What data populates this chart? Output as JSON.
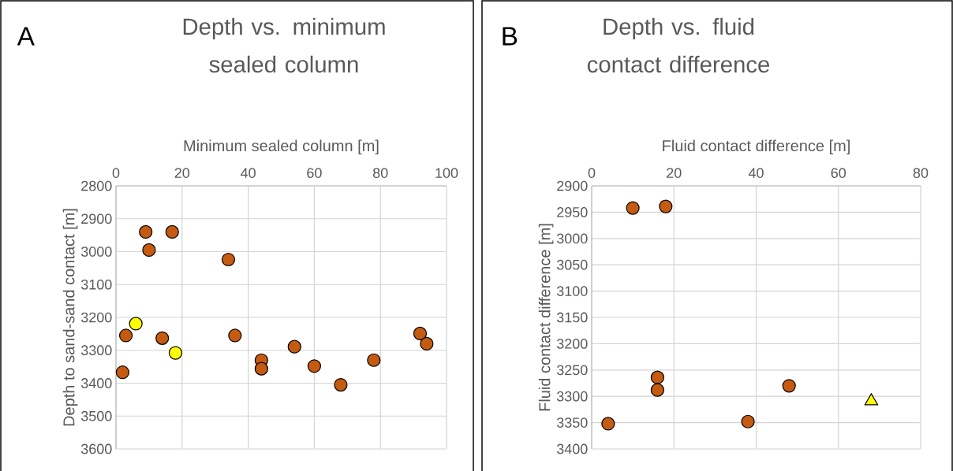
{
  "chart_data": [
    {
      "type": "scatter",
      "title": "Depth vs. minimum sealed column",
      "xlabel": "Minimum sealed column [m]",
      "ylabel": "Depth to sand-sand contact [m]",
      "annotations": [
        "A"
      ],
      "xlim": [
        0,
        100
      ],
      "xticks": [
        0,
        20,
        40,
        60,
        80,
        100
      ],
      "ylim": [
        3600,
        2800
      ],
      "yticks": [
        2800,
        2900,
        3000,
        3100,
        3200,
        3300,
        3400,
        3500,
        3600
      ],
      "grid": true,
      "series": [
        {
          "color": "#c55a11",
          "marker": "circle",
          "x": [
            9,
            17,
            10,
            34,
            36,
            3,
            14,
            2,
            44,
            44,
            54,
            60,
            68,
            78,
            92,
            94
          ],
          "values": [
            2940,
            2940,
            2995,
            3024,
            3255,
            3255,
            3263,
            3367,
            3330,
            3356,
            3289,
            3348,
            3405,
            3330,
            3249,
            3280
          ]
        },
        {
          "color": "#ffff00",
          "marker": "circle",
          "x": [
            6,
            18
          ],
          "values": [
            3219,
            3308
          ]
        }
      ]
    },
    {
      "type": "scatter",
      "title": "Depth vs. fluid contact difference",
      "xlabel": "Fluid contact difference [m]",
      "ylabel": "Fluid contact difference [m]",
      "annotations": [
        "B"
      ],
      "xlim": [
        0,
        80
      ],
      "xticks": [
        0,
        20,
        40,
        60,
        80
      ],
      "ylim": [
        3400,
        2900
      ],
      "yticks": [
        2900,
        2950,
        3000,
        3050,
        3100,
        3150,
        3200,
        3250,
        3300,
        3350,
        3400
      ],
      "grid": true,
      "series": [
        {
          "color": "#c55a11",
          "marker": "circle",
          "x": [
            10,
            18,
            16,
            16,
            4,
            38,
            48
          ],
          "values": [
            2942,
            2939,
            3264,
            3288,
            3352,
            3348,
            3280
          ]
        },
        {
          "color": "#ffff00",
          "marker": "triangle",
          "x": [
            68
          ],
          "values": [
            3309
          ]
        }
      ]
    }
  ]
}
